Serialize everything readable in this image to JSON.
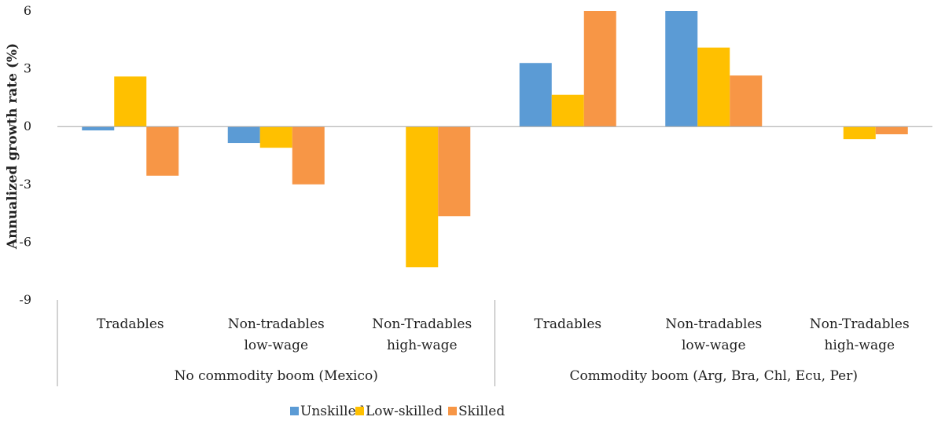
{
  "chart_data": {
    "type": "bar",
    "title": "",
    "xlabel": "",
    "ylabel": "Annualized growth rate (%)",
    "ylim": [
      -9,
      6
    ],
    "yticks": [
      6,
      3,
      0,
      -3,
      -6,
      -9
    ],
    "grid": false,
    "legend_position": "bottom",
    "groups": [
      {
        "label": "No commodity boom (Mexico)",
        "categories": [
          [
            "Tradables"
          ],
          [
            "Non-tradables",
            "low-wage"
          ],
          [
            "Non-Tradables",
            "high-wage"
          ]
        ]
      },
      {
        "label": "Commodity boom (Arg, Bra, Chl, Ecu, Per)",
        "categories": [
          [
            "Tradables"
          ],
          [
            "Non-tradables",
            "low-wage"
          ],
          [
            "Non-Tradables",
            "high-wage"
          ]
        ]
      }
    ],
    "series": [
      {
        "name": "Unskilled",
        "color": "#5b9bd5",
        "values": [
          -0.2,
          -0.85,
          0.0,
          3.3,
          6.0,
          0.0
        ]
      },
      {
        "name": "Low-skilled",
        "color": "#ffc000",
        "values": [
          2.6,
          -1.1,
          -7.3,
          1.65,
          4.1,
          -0.65
        ]
      },
      {
        "name": "Skilled",
        "color": "#f79646",
        "values": [
          -2.55,
          -3.0,
          -4.65,
          6.0,
          2.65,
          -0.4
        ]
      }
    ]
  }
}
